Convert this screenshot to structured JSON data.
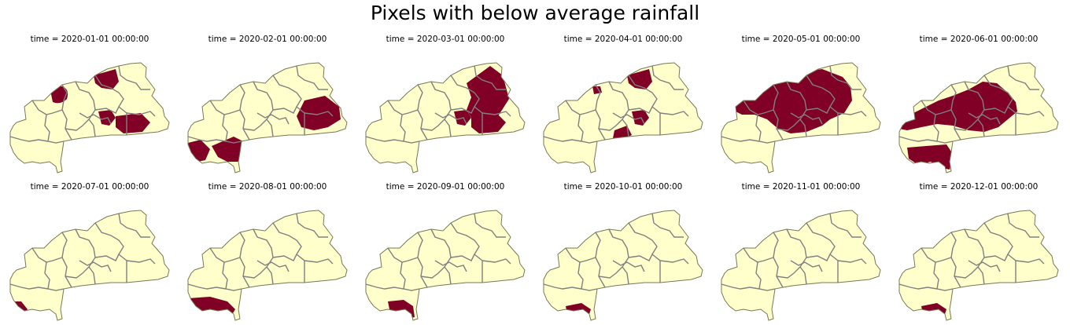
{
  "title": "Pixels with below average rainfall",
  "colors": {
    "above_or_normal": "#ffffcc",
    "below": "#800026",
    "border": "#808080",
    "outline": "#777755"
  },
  "panels": [
    {
      "label": "time = 2020-01-01 00:00:00",
      "blobs": [
        "tl",
        "n",
        "cen",
        "se"
      ]
    },
    {
      "label": "time = 2020-02-01 00:00:00",
      "blobs": [
        "east",
        "sw"
      ]
    },
    {
      "label": "time = 2020-03-01 00:00:00",
      "blobs": [
        "ne",
        "cen",
        "se"
      ]
    },
    {
      "label": "time = 2020-04-01 00:00:00",
      "blobs": [
        "n",
        "cen",
        "s",
        "nw"
      ]
    },
    {
      "label": "time = 2020-05-01 00:00:00",
      "blobs": [
        "big",
        "tl"
      ]
    },
    {
      "label": "time = 2020-06-01 00:00:00",
      "blobs": [
        "wide",
        "sw2"
      ]
    },
    {
      "label": "time = 2020-07-01 00:00:00",
      "blobs": [
        "swtip"
      ]
    },
    {
      "label": "time = 2020-08-01 00:00:00",
      "blobs": [
        "swtip2"
      ]
    },
    {
      "label": "time = 2020-09-01 00:00:00",
      "blobs": [
        "swtip3"
      ]
    },
    {
      "label": "time = 2020-10-01 00:00:00",
      "blobs": [
        "s2"
      ]
    },
    {
      "label": "time = 2020-11-01 00:00:00",
      "blobs": []
    },
    {
      "label": "time = 2020-12-01 00:00:00",
      "blobs": [
        "s2",
        "nw2"
      ]
    }
  ]
}
